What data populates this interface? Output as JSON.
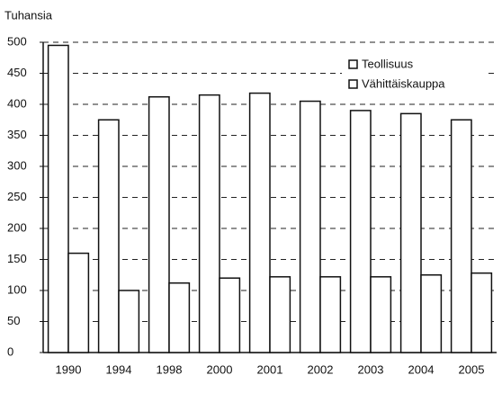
{
  "chart_data": {
    "type": "bar",
    "y_label": "Tuhansia",
    "categories": [
      "1990",
      "1994",
      "1998",
      "2000",
      "2001",
      "2002",
      "2003",
      "2004",
      "2005"
    ],
    "series": [
      {
        "name": "Teollisuus",
        "color": "#ffffff",
        "values": [
          495,
          375,
          412,
          415,
          418,
          405,
          390,
          385,
          375
        ]
      },
      {
        "name": "Vähittäiskauppa",
        "color": "#ffffff",
        "values": [
          160,
          100,
          112,
          120,
          122,
          122,
          122,
          125,
          128
        ]
      }
    ],
    "ylim": [
      0,
      500
    ],
    "yticks": [
      0,
      50,
      100,
      150,
      200,
      250,
      300,
      350,
      400,
      450,
      500
    ],
    "grid": true,
    "legend": "upper right"
  }
}
